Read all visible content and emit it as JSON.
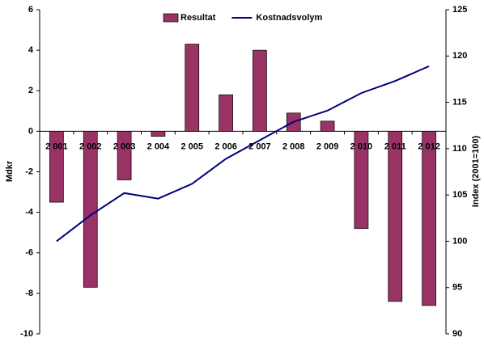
{
  "chart_data": {
    "type": "bar_line",
    "categories": [
      "2 001",
      "2 002",
      "2 003",
      "2 004",
      "2 005",
      "2 006",
      "2 007",
      "2 008",
      "2 009",
      "2 010",
      "2 011",
      "2 012"
    ],
    "series": [
      {
        "name": "Resultat",
        "type": "bar",
        "color": "#993366",
        "values": [
          -3.5,
          -7.7,
          -2.4,
          -0.25,
          4.3,
          1.8,
          4.0,
          0.9,
          0.5,
          -4.8,
          -8.4,
          -8.6
        ]
      },
      {
        "name": "Kostnadsvolym",
        "type": "line",
        "axis": "y2",
        "color": "#000080",
        "values": [
          100,
          102.8,
          105.2,
          104.6,
          106.2,
          108.9,
          110.9,
          112.9,
          114.1,
          116.0,
          117.3,
          118.9
        ]
      }
    ],
    "ylabel": "Mdkr",
    "y2label": "Index (2001=100)",
    "ylim": [
      -10,
      6
    ],
    "yticks": [
      -10,
      -8,
      -6,
      -4,
      -2,
      0,
      2,
      4,
      6
    ],
    "y2lim": [
      90,
      125
    ],
    "y2ticks": [
      90,
      95,
      100,
      105,
      110,
      115,
      120,
      125
    ],
    "grid": false
  }
}
